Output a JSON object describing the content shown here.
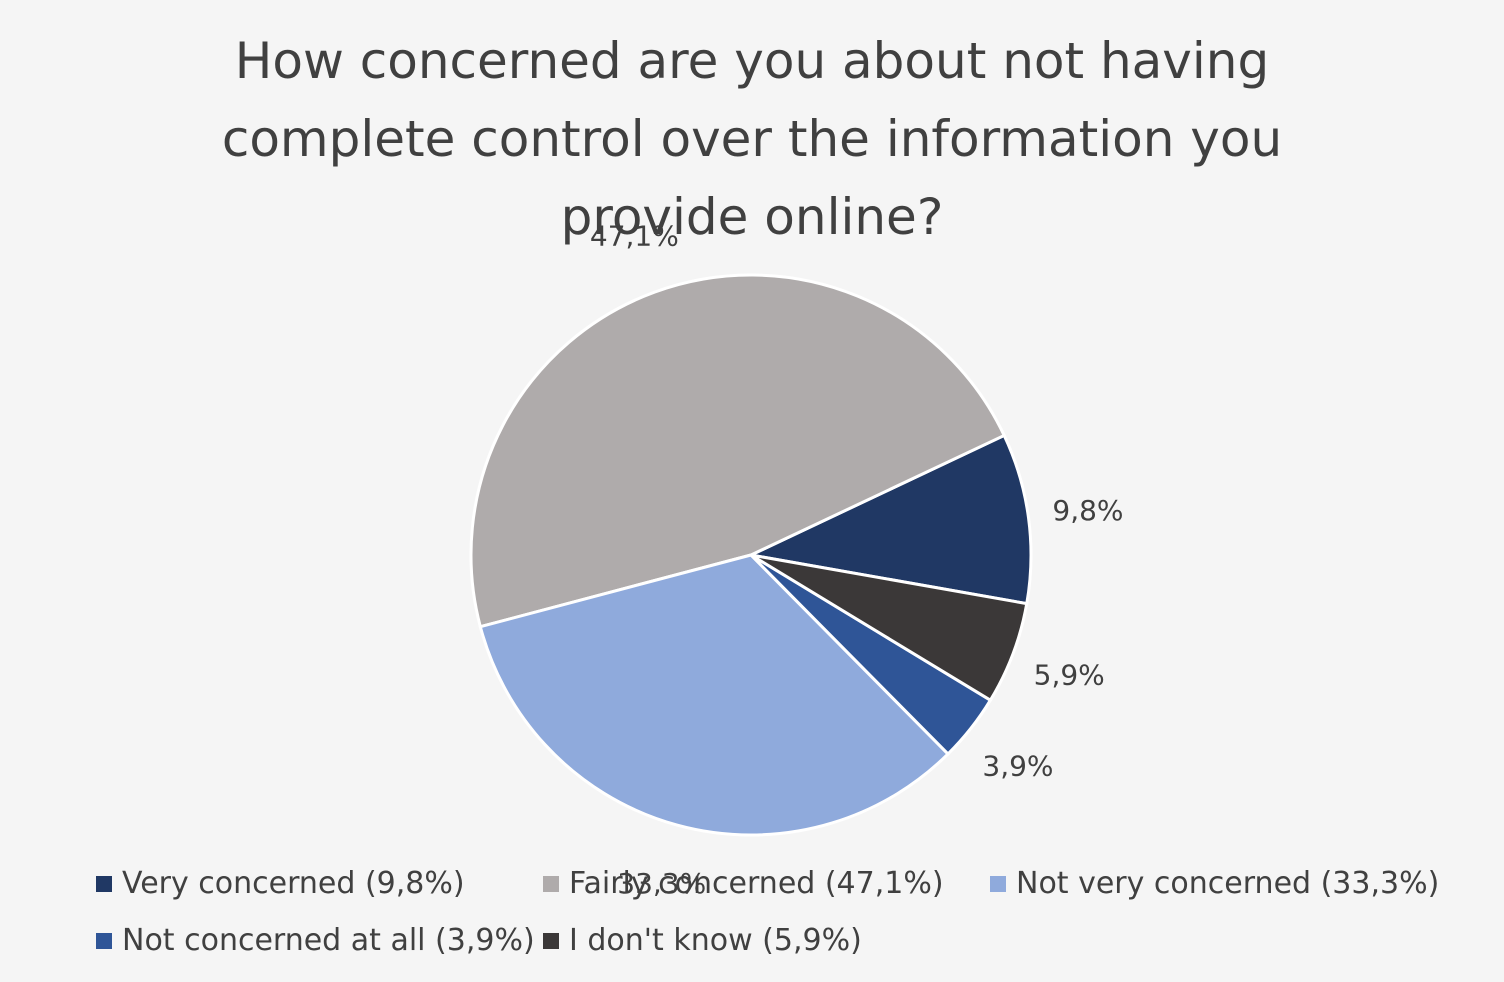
{
  "title_lines": [
    "How concerned are you about not having",
    "complete control over the information you",
    "provide online?"
  ],
  "chart_data": {
    "type": "pie",
    "categories": [
      "Very concerned",
      "Fairly concerned",
      "Not very concerned",
      "Not concerned at all",
      "I don't know"
    ],
    "values": [
      9.8,
      47.1,
      33.3,
      3.9,
      5.9
    ],
    "data_labels": [
      "9,8%",
      "47,1%",
      "33,3%",
      "3,9%",
      "5,9%"
    ],
    "legend_labels": [
      "Very concerned (9,8%)",
      "Fairly concerned (47,1%)",
      "Not very concerned (33,3%)",
      "Not concerned at all (3,9%)",
      "I don't know (5,9%)"
    ],
    "colors": [
      "#203864",
      "#afabab",
      "#8faadc",
      "#2f5597",
      "#3b3838"
    ],
    "legend_position": "bottom"
  }
}
